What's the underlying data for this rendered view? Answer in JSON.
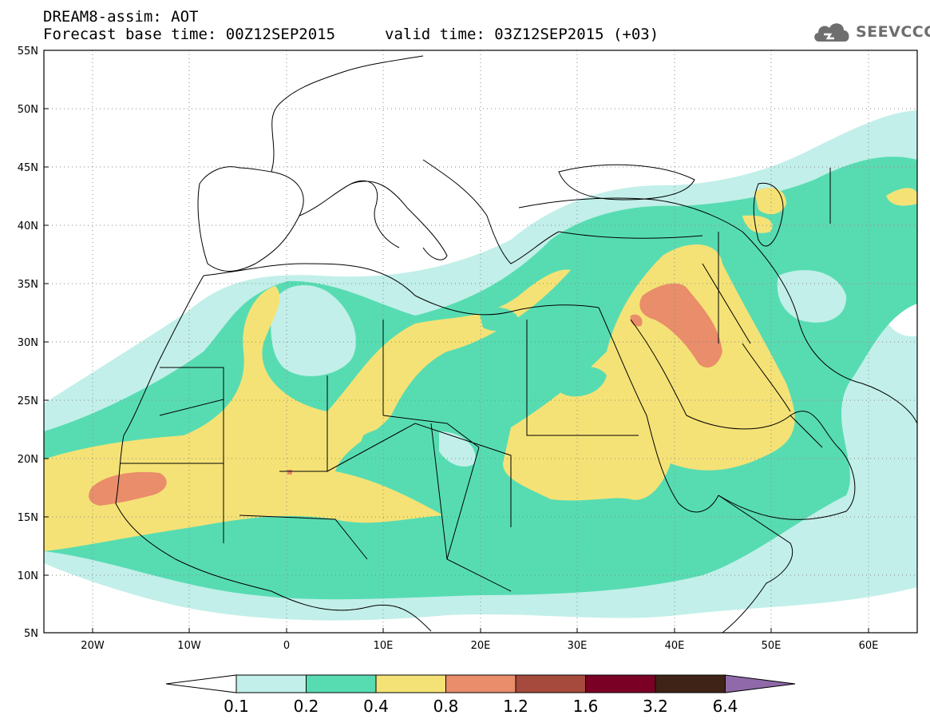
{
  "header": {
    "model": "DREAM8-assim: AOT",
    "base_time": "Forecast base time: 00Z12SEP2015",
    "valid_time": "valid time: 03Z12SEP2015 (+03)"
  },
  "logo": {
    "text": "SEEVCCC",
    "icon": "cloud-logo-icon",
    "color": "#6e6e6e"
  },
  "map": {
    "lon_range": [
      -25,
      65
    ],
    "lat_range": [
      5,
      55
    ],
    "lat_ticks": [
      "5N",
      "10N",
      "15N",
      "20N",
      "25N",
      "30N",
      "35N",
      "40N",
      "45N",
      "50N",
      "55N"
    ],
    "lon_ticks": [
      "20W",
      "10W",
      "0",
      "10E",
      "20E",
      "30E",
      "40E",
      "50E",
      "60E"
    ],
    "grid": "dotted"
  },
  "colorbar": {
    "boundaries": [
      "0.1",
      "0.2",
      "0.4",
      "0.8",
      "1.2",
      "1.6",
      "3.2",
      "6.4"
    ],
    "colors": [
      "#ffffff",
      "#c2efe9",
      "#57dcb2",
      "#f5e276",
      "#e98d6a",
      "#a54a3c",
      "#7b0026",
      "#3e2316",
      "#8f69a9"
    ]
  }
}
